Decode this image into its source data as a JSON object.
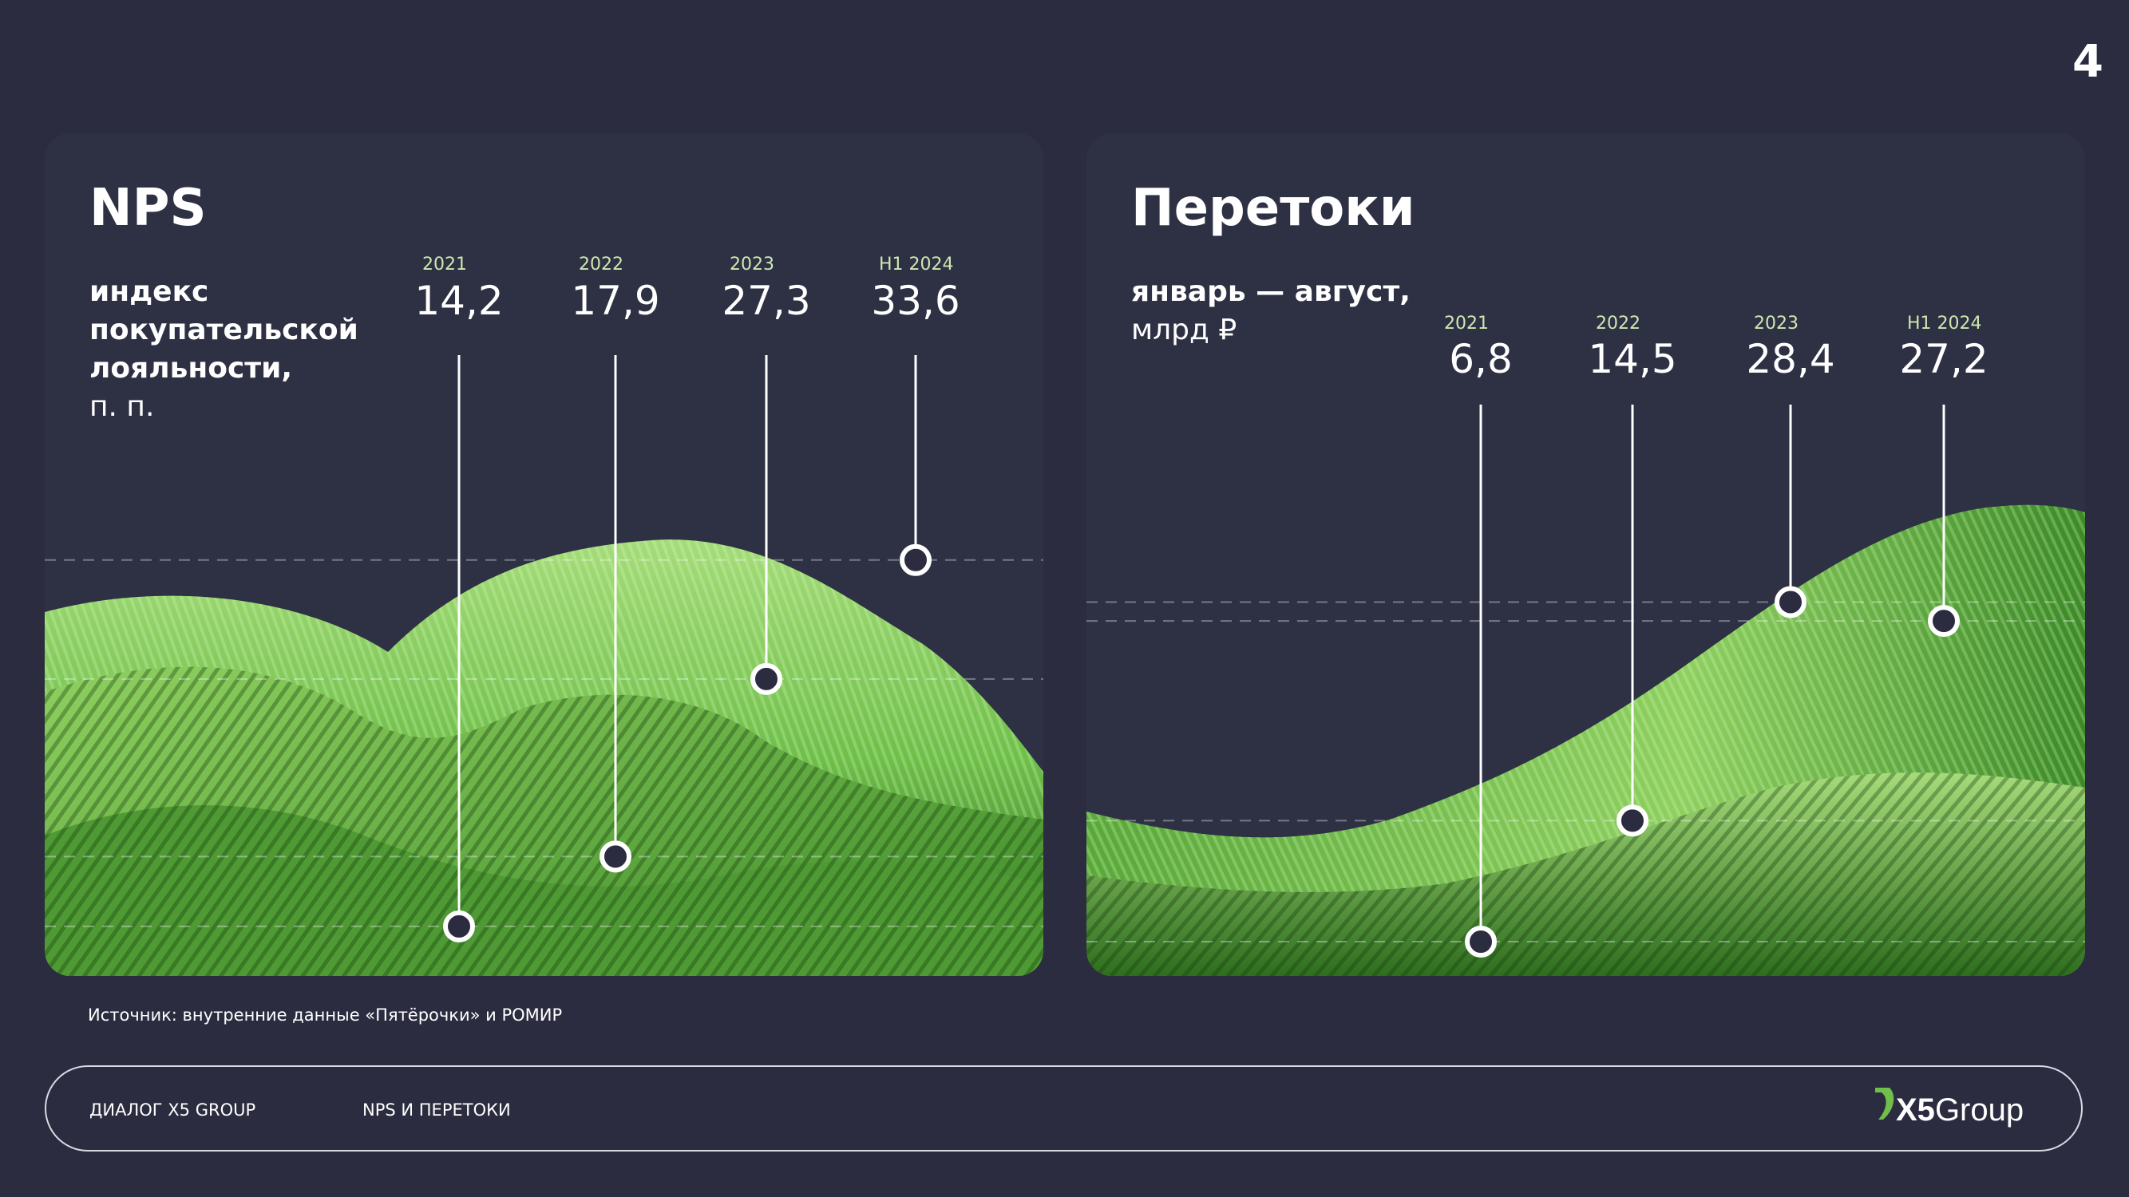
{
  "page_number": "4",
  "source_note": "Источник: внутренние данные «Пятёрочки» и РОМИР",
  "footer": {
    "section": "ДИАЛОГ X5 GROUP",
    "topic": "NPS И ПЕРЕТОКИ",
    "logo_bold": "X5",
    "logo_regular": "Group"
  },
  "colors": {
    "background": "#2b2c3f",
    "accent_green": "#6fbf4a",
    "green_light": "#a6dc7a",
    "green_dark": "#2f6e1f"
  },
  "chart_data": [
    {
      "type": "line",
      "title": "NPS",
      "subtitle_lines": [
        "индекс",
        "покупательской",
        "лояльности,"
      ],
      "unit": "п. п.",
      "categories": [
        "2021",
        "2022",
        "2023",
        "H1 2024"
      ],
      "values": [
        "14,2",
        "17,9",
        "27,3",
        "33,6"
      ],
      "numeric_values": [
        14.2,
        17.9,
        27.3,
        33.6
      ],
      "ylim": [
        0,
        45
      ],
      "grid": "dashed",
      "legend": "none"
    },
    {
      "type": "line",
      "title": "Перетоки",
      "subtitle_lines": [
        "январь — август,"
      ],
      "unit": "млрд ₽",
      "categories": [
        "2021",
        "2022",
        "2023",
        "H1 2024"
      ],
      "values": [
        "6,8",
        "14,5",
        "28,4",
        "27,2"
      ],
      "numeric_values": [
        6.8,
        14.5,
        28.4,
        27.2
      ],
      "ylim": [
        0,
        40
      ],
      "grid": "dashed",
      "legend": "none"
    }
  ]
}
